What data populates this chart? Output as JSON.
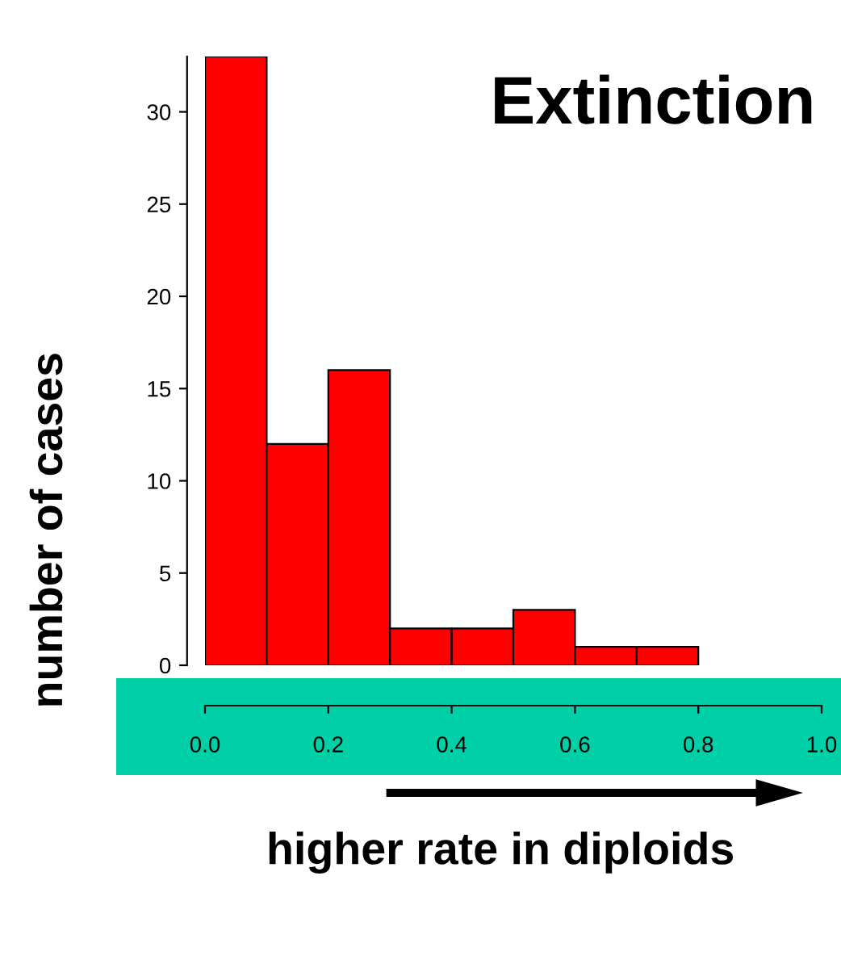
{
  "chart_data": {
    "type": "histogram",
    "title": "Extinction",
    "xlabel": "higher rate in diploids",
    "ylabel": "number of cases",
    "bins": [
      0.0,
      0.1,
      0.2,
      0.3,
      0.4,
      0.5,
      0.6,
      0.7,
      0.8
    ],
    "values": [
      33,
      12,
      16,
      2,
      2,
      3,
      1,
      1
    ],
    "color": "#ff0000",
    "xlim": [
      0.0,
      1.0
    ],
    "xticks": [
      {
        "value": 0,
        "label": "0.0"
      },
      0.2,
      0.4,
      0.6,
      0.8,
      {
        "value": 1,
        "label": "1.0"
      }
    ],
    "ylim": [
      0,
      33
    ],
    "yticks": [
      0,
      5,
      10,
      15,
      20,
      25,
      30
    ],
    "grid": false
  }
}
